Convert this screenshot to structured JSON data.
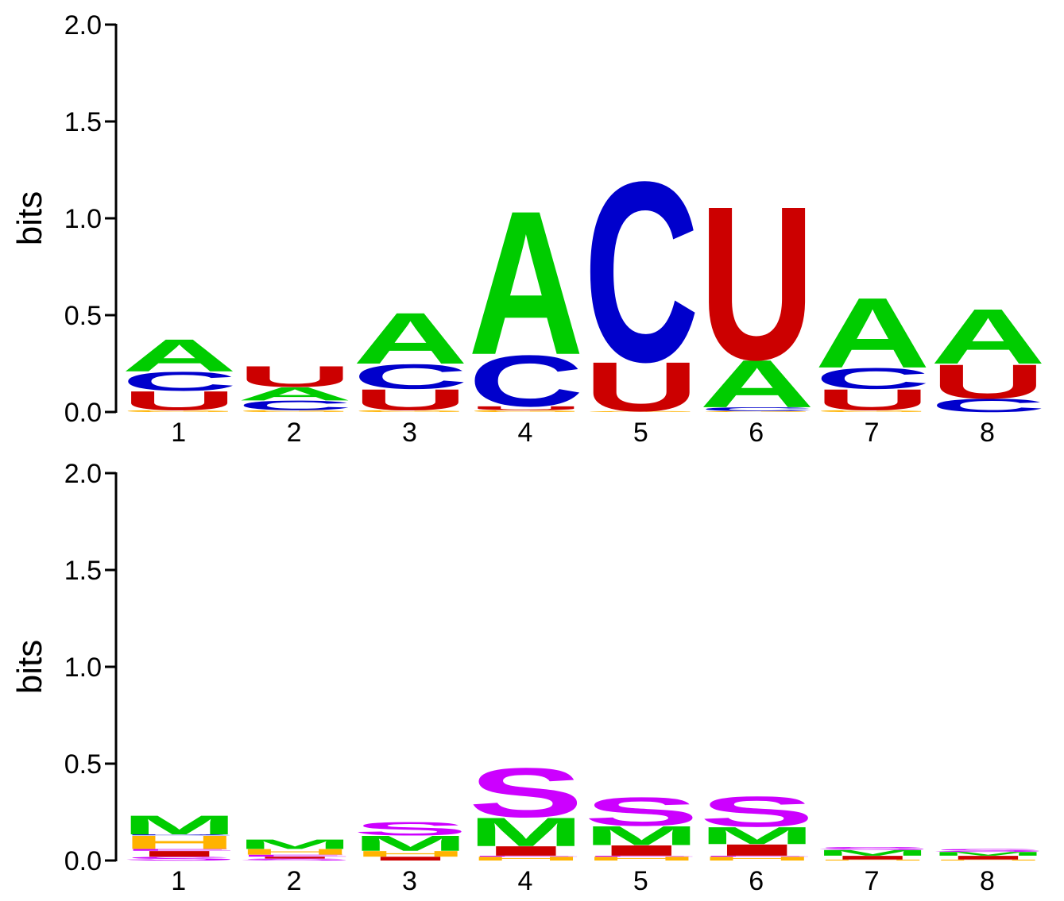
{
  "colors": {
    "A": "#00cc00",
    "C": "#0000cc",
    "U": "#cc0000",
    "G": "#ffb300",
    "M": "#00cc00",
    "S": "#cc00ff",
    "H": "#ffb300",
    "I": "#cc0000",
    "B": "#0000cc",
    "E": "#cc00ff"
  },
  "chart_data": [
    {
      "type": "sequence-logo",
      "ylabel": "bits",
      "ylim": [
        0,
        2.0
      ],
      "yticks": [
        "0.0",
        "0.5",
        "1.0",
        "1.5",
        "2.0"
      ],
      "positions": [
        "1",
        "2",
        "3",
        "4",
        "5",
        "6",
        "7",
        "8"
      ],
      "stacks": [
        [
          [
            "G",
            0.01
          ],
          [
            "U",
            0.1
          ],
          [
            "C",
            0.1
          ],
          [
            "A",
            0.17
          ]
        ],
        [
          [
            "G",
            0.01
          ],
          [
            "C",
            0.05
          ],
          [
            "A",
            0.07
          ],
          [
            "U",
            0.11
          ]
        ],
        [
          [
            "G",
            0.01
          ],
          [
            "U",
            0.11
          ],
          [
            "C",
            0.13
          ],
          [
            "A",
            0.27
          ]
        ],
        [
          [
            "G",
            0.01
          ],
          [
            "U",
            0.02
          ],
          [
            "C",
            0.27
          ],
          [
            "A",
            0.76
          ]
        ],
        [
          [
            "G",
            0.005
          ],
          [
            "U",
            0.26
          ],
          [
            "C",
            0.95
          ]
        ],
        [
          [
            "G",
            0.005
          ],
          [
            "C",
            0.02
          ],
          [
            "A",
            0.25
          ],
          [
            "U",
            0.81
          ]
        ],
        [
          [
            "G",
            0.01
          ],
          [
            "U",
            0.11
          ],
          [
            "C",
            0.11
          ],
          [
            "A",
            0.37
          ]
        ],
        [
          [
            "C",
            0.07
          ],
          [
            "U",
            0.18
          ],
          [
            "A",
            0.29
          ]
        ]
      ]
    },
    {
      "type": "sequence-logo",
      "ylabel": "bits",
      "ylim": [
        0,
        2.0
      ],
      "yticks": [
        "0.0",
        "0.5",
        "1.0",
        "1.5",
        "2.0"
      ],
      "positions": [
        "1",
        "2",
        "3",
        "4",
        "5",
        "6",
        "7",
        "8"
      ],
      "stacks": [
        [
          [
            "S",
            0.02
          ],
          [
            "I",
            0.03
          ],
          [
            "E",
            0.01
          ],
          [
            "H",
            0.07
          ],
          [
            "B",
            0.005
          ],
          [
            "M",
            0.1
          ]
        ],
        [
          [
            "S",
            0.01
          ],
          [
            "I",
            0.01
          ],
          [
            "E",
            0.01
          ],
          [
            "H",
            0.03
          ],
          [
            "M",
            0.05
          ]
        ],
        [
          [
            "I",
            0.02
          ],
          [
            "H",
            0.03
          ],
          [
            "M",
            0.08
          ],
          [
            "S",
            0.07
          ]
        ],
        [
          [
            "H",
            0.02
          ],
          [
            "E",
            0.005
          ],
          [
            "I",
            0.05
          ],
          [
            "M",
            0.15
          ],
          [
            "S",
            0.26
          ]
        ],
        [
          [
            "H",
            0.02
          ],
          [
            "E",
            0.005
          ],
          [
            "I",
            0.055
          ],
          [
            "M",
            0.1
          ],
          [
            "S",
            0.15
          ]
        ],
        [
          [
            "H",
            0.02
          ],
          [
            "E",
            0.005
          ],
          [
            "I",
            0.06
          ],
          [
            "M",
            0.09
          ],
          [
            "S",
            0.16
          ]
        ],
        [
          [
            "H",
            0.005
          ],
          [
            "I",
            0.02
          ],
          [
            "M",
            0.03
          ],
          [
            "S",
            0.015
          ]
        ],
        [
          [
            "H",
            0.005
          ],
          [
            "I",
            0.02
          ],
          [
            "M",
            0.02
          ],
          [
            "S",
            0.015
          ]
        ]
      ]
    }
  ]
}
